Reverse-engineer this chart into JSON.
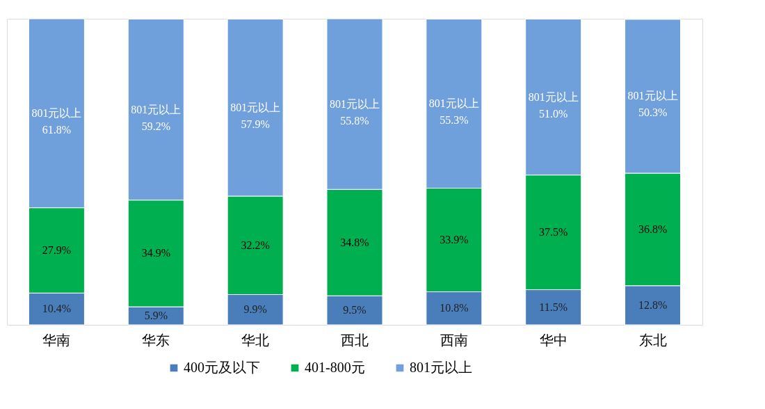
{
  "chart_data": {
    "type": "bar",
    "stacked": true,
    "legend": "bottom",
    "categories": [
      "华南",
      "华东",
      "华北",
      "西北",
      "西南",
      "华中",
      "东北"
    ],
    "series": [
      {
        "name": "400元及以下",
        "color": "#4a7ebb",
        "values": [
          10.4,
          5.9,
          9.9,
          9.5,
          10.8,
          11.5,
          12.8
        ],
        "value_labels": [
          "10.4%",
          "5.9%",
          "9.9%",
          "9.5%",
          "10.8%",
          "11.5%",
          "12.8%"
        ]
      },
      {
        "name": "401-800元",
        "color": "#00b050",
        "values": [
          27.9,
          34.9,
          32.2,
          34.8,
          33.9,
          37.5,
          36.8
        ],
        "value_labels": [
          "27.9%",
          "34.9%",
          "32.2%",
          "34.8%",
          "33.9%",
          "37.5%",
          "36.8%"
        ]
      },
      {
        "name": "801元以上",
        "color": "#6fa0dc",
        "values": [
          61.8,
          59.2,
          57.9,
          55.8,
          55.3,
          51.0,
          50.3
        ],
        "value_labels": [
          "801元以上\n61.8%",
          "801元以上\n59.2%",
          "801元以上\n57.9%",
          "801元以上\n55.8%",
          "801元以上\n55.3%",
          "801元以上\n51.0%",
          "801元以上\n50.3%"
        ]
      }
    ]
  }
}
